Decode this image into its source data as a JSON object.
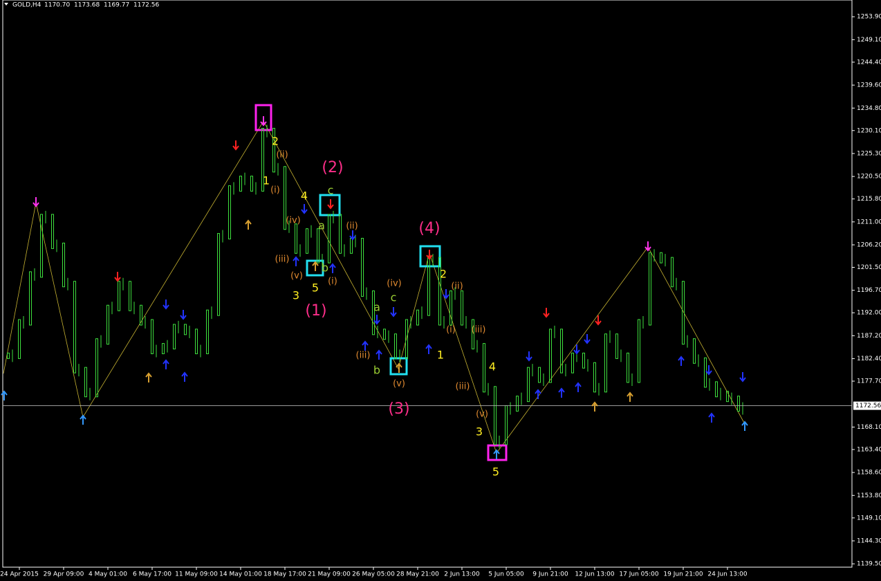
{
  "chart_data": {
    "type": "bar",
    "symbol": "GOLD,H4",
    "ohlc": [
      {
        "value": 1170.7,
        "label": "1170.70"
      },
      {
        "value": 1173.68,
        "label": "1173.68"
      },
      {
        "value": 1169.77,
        "label": "1169.77"
      },
      {
        "value": 1172.56,
        "label": "1172.56"
      }
    ],
    "categories": [
      null,
      "24 Apr 2015",
      null,
      null,
      null,
      "29 Apr 09:00",
      null,
      null,
      null,
      "4 May 01:00",
      null,
      null,
      null,
      "6 May 17:00",
      null,
      null,
      null,
      "11 May 09:00",
      null,
      null,
      null,
      "14 May 01:00",
      null,
      null,
      null,
      "18 May 17:00",
      null,
      null,
      null,
      "21 May 09:00",
      null,
      null,
      null,
      "26 May 05:00",
      null,
      null,
      null,
      "28 May 21:00",
      null,
      null,
      null,
      "2 Jun 13:00",
      null,
      null,
      null,
      "5 Jun 05:00",
      null,
      null,
      null,
      "9 Jun 21:00",
      null,
      null,
      null,
      "12 Jun 13:00",
      null,
      null,
      null,
      "17 Jun 05:00",
      null,
      null,
      null,
      "19 Jun 21:00",
      null,
      null,
      null,
      "24 Jun 13:00",
      null
    ],
    "values": [
      1183,
      1190,
      1200,
      1212,
      1206,
      1198,
      1180,
      1175,
      1186,
      1193,
      1198,
      1193,
      1190,
      1184,
      1185,
      1189,
      1188,
      1184,
      1192,
      1208,
      1218,
      1220,
      1218,
      1230,
      1222,
      1210,
      1205,
      1209,
      1203,
      1212,
      1205,
      1207,
      1196,
      1188,
      1187,
      1183,
      1190,
      1192,
      1203,
      1190,
      1196,
      1190,
      1185,
      1176,
      1165,
      1172,
      1174,
      1180,
      1178,
      1188,
      1180,
      1183,
      1181,
      1176,
      1187,
      1183,
      1178,
      1190,
      1204,
      1203,
      1198,
      1186,
      1182,
      1177,
      1175,
      1174,
      1172
    ],
    "color": "#3ee03e",
    "ylim": [
      1138.8,
      1257.4
    ],
    "yticks": [
      {
        "value": 1253.9,
        "label": "1253.90"
      },
      {
        "value": 1249.1,
        "label": "1249.10"
      },
      {
        "value": 1244.4,
        "label": "1244.40"
      },
      {
        "value": 1239.6,
        "label": "1239.60"
      },
      {
        "value": 1234.8,
        "label": "1234.80"
      },
      {
        "value": 1230.1,
        "label": "1230.10"
      },
      {
        "value": 1225.3,
        "label": "1225.30"
      },
      {
        "value": 1220.5,
        "label": "1220.50"
      },
      {
        "value": 1215.8,
        "label": "1215.80"
      },
      {
        "value": 1211,
        "label": "1211.00"
      },
      {
        "value": 1206.2,
        "label": "1206.20"
      },
      {
        "value": 1201.5,
        "label": "1201.50"
      },
      {
        "value": 1196.7,
        "label": "1196.70"
      },
      {
        "value": 1192,
        "label": "1192.00"
      },
      {
        "value": 1187.2,
        "label": "1187.20"
      },
      {
        "value": 1182.4,
        "label": "1182.40"
      },
      {
        "value": 1177.7,
        "label": "1177.70"
      },
      {
        "value": 1168.1,
        "label": "1168.10"
      },
      {
        "value": 1163.4,
        "label": "1163.40"
      },
      {
        "value": 1158.6,
        "label": "1158.60"
      },
      {
        "value": 1153.8,
        "label": "1153.80"
      },
      {
        "value": 1149.1,
        "label": "1149.10"
      },
      {
        "value": 1144.3,
        "label": "1144.30"
      },
      {
        "value": 1139.5,
        "label": "1139.50"
      }
    ],
    "annotations": [
      {
        "text": "2",
        "color": "#ffee22"
      },
      {
        "text": "1",
        "color": "#ffee22"
      },
      {
        "text": "(ii)",
        "color": "#e08a30"
      },
      {
        "text": "(i)",
        "color": "#e08a30"
      },
      {
        "text": "4",
        "color": "#ffee22"
      },
      {
        "text": "(2)",
        "color": "#ff2e8a"
      },
      {
        "text": "c",
        "color": "#9acd32"
      },
      {
        "text": "a",
        "color": "#9acd32"
      },
      {
        "text": "(iv)",
        "color": "#e08a30"
      },
      {
        "text": "(iii)",
        "color": "#e08a30"
      },
      {
        "text": "(v)",
        "color": "#e08a30"
      },
      {
        "text": "b",
        "color": "#9acd32"
      },
      {
        "text": "5",
        "color": "#ffee22"
      },
      {
        "text": "3",
        "color": "#ffee22"
      },
      {
        "text": "(1)",
        "color": "#ff2e8a"
      },
      {
        "text": "(i)",
        "color": "#e08a30"
      },
      {
        "text": "(ii)",
        "color": "#e08a30"
      },
      {
        "text": "(4)",
        "color": "#ff2e8a"
      },
      {
        "text": "2",
        "color": "#ffee22"
      },
      {
        "text": "(ii)",
        "color": "#e08a30"
      },
      {
        "text": "(iv)",
        "color": "#e08a30"
      },
      {
        "text": "c",
        "color": "#9acd32"
      },
      {
        "text": "a",
        "color": "#9acd32"
      },
      {
        "text": "(i)",
        "color": "#e08a30"
      },
      {
        "text": "(iii)",
        "color": "#e08a30"
      },
      {
        "text": "1",
        "color": "#ffee22"
      },
      {
        "text": "(iii)",
        "color": "#e08a30"
      },
      {
        "text": "b",
        "color": "#9acd32"
      },
      {
        "text": "(v)",
        "color": "#e08a30"
      },
      {
        "text": "(3)",
        "color": "#ff2e8a"
      },
      {
        "text": "4",
        "color": "#ffee22"
      },
      {
        "text": "(iii)",
        "color": "#e08a30"
      },
      {
        "text": "(v)",
        "color": "#e08a30"
      },
      {
        "text": "3",
        "color": "#ffee22"
      },
      {
        "text": "5",
        "color": "#ffee22"
      }
    ]
  }
}
